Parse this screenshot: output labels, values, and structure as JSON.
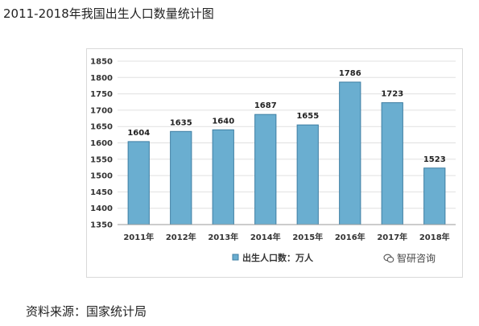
{
  "page_title": "2011-2018年我国出生人口数量统计图",
  "source_text": "资料来源：国家统计局",
  "watermark": "智研咨询",
  "colors": {
    "bar_fill": "#6aaed0",
    "bar_stroke": "#3f7fa3",
    "grid": "#e0e0e0",
    "axis": "#999999"
  },
  "chart_data": {
    "type": "bar",
    "title": "",
    "xlabel": "",
    "ylabel": "",
    "categories": [
      "2011年",
      "2012年",
      "2013年",
      "2014年",
      "2015年",
      "2016年",
      "2017年",
      "2018年"
    ],
    "series": [
      {
        "name": "出生人口数：万人",
        "values": [
          1604,
          1635,
          1640,
          1687,
          1655,
          1786,
          1723,
          1523
        ]
      }
    ],
    "ylim": [
      1350,
      1850
    ],
    "yticks": [
      1350,
      1400,
      1450,
      1500,
      1550,
      1600,
      1650,
      1700,
      1750,
      1800,
      1850
    ],
    "grid": true,
    "legend_position": "bottom",
    "data_labels": true
  }
}
